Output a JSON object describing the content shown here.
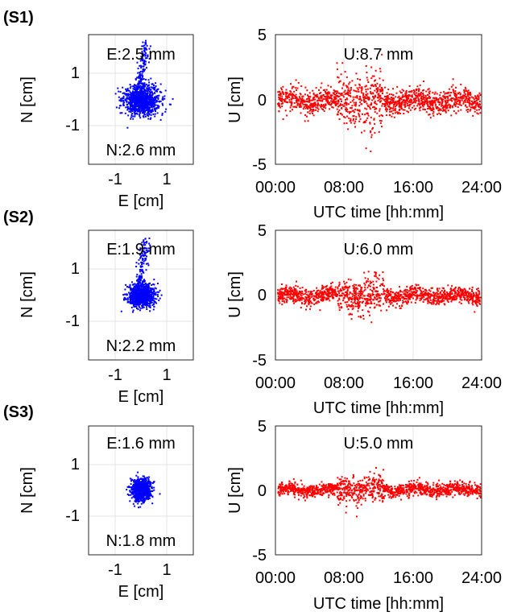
{
  "figure": {
    "rows": [
      {
        "label": "(S1)",
        "scatter_annotations": {
          "top": "E:2.5 mm",
          "bottom": "N:2.6 mm"
        },
        "scatter_xlabel": "E [cm]",
        "scatter_ylabel": "N [cm]",
        "scatter_xticks": [
          "-1",
          "1"
        ],
        "scatter_yticks": [
          "1",
          "-1"
        ],
        "time_annotation": "U:8.7 mm",
        "time_xlabel": "UTC time [hh:mm]",
        "time_ylabel": "U [cm]",
        "time_xticks": [
          "00:00",
          "08:00",
          "16:00",
          "24:00"
        ],
        "time_yticks": [
          "5",
          "0",
          "-5"
        ]
      },
      {
        "label": "(S2)",
        "scatter_annotations": {
          "top": "E:1.9 mm",
          "bottom": "N:2.2 mm"
        },
        "scatter_xlabel": "E [cm]",
        "scatter_ylabel": "N [cm]",
        "scatter_xticks": [
          "-1",
          "1"
        ],
        "scatter_yticks": [
          "1",
          "-1"
        ],
        "time_annotation": "U:6.0 mm",
        "time_xlabel": "UTC time [hh:mm]",
        "time_ylabel": "U [cm]",
        "time_xticks": [
          "00:00",
          "08:00",
          "16:00",
          "24:00"
        ],
        "time_yticks": [
          "5",
          "0",
          "-5"
        ]
      },
      {
        "label": "(S3)",
        "scatter_annotations": {
          "top": "E:1.6 mm",
          "bottom": "N:1.8 mm"
        },
        "scatter_xlabel": "E [cm]",
        "scatter_ylabel": "N [cm]",
        "scatter_xticks": [
          "-1",
          "1"
        ],
        "scatter_yticks": [
          "1",
          "-1"
        ],
        "time_annotation": "U:5.0 mm",
        "time_xlabel": "UTC time [hh:mm]",
        "time_ylabel": "U [cm]",
        "time_xticks": [
          "00:00",
          "08:00",
          "16:00",
          "24:00"
        ],
        "time_yticks": [
          "5",
          "0",
          "-5"
        ]
      }
    ],
    "colors": {
      "scatter": "#0000ff",
      "timeseries": "#ff0000",
      "grid": "#e3e3e3",
      "axis": "#262626"
    }
  },
  "chart_data": [
    {
      "type": "scatter",
      "panel": "S1 horizontal",
      "xlabel": "E [cm]",
      "ylabel": "N [cm]",
      "xlim": [
        -2,
        2
      ],
      "ylim": [
        -2,
        2
      ],
      "grid": true,
      "annotations": [
        "E:2.5 mm",
        "N:2.6 mm"
      ],
      "center": [
        0,
        0
      ],
      "std_mm": [
        2.5,
        2.6
      ]
    },
    {
      "type": "scatter",
      "panel": "S1 up",
      "xlabel": "UTC time [hh:mm]",
      "ylabel": "U [cm]",
      "xlim": [
        "00:00",
        "24:00"
      ],
      "ylim": [
        -5,
        5
      ],
      "grid": true,
      "annotations": [
        "U:8.7 mm"
      ],
      "std_mm": 8.7
    },
    {
      "type": "scatter",
      "panel": "S2 horizontal",
      "xlabel": "E [cm]",
      "ylabel": "N [cm]",
      "xlim": [
        -2,
        2
      ],
      "ylim": [
        -2,
        2
      ],
      "grid": true,
      "annotations": [
        "E:1.9 mm",
        "N:2.2 mm"
      ],
      "center": [
        0,
        0
      ],
      "std_mm": [
        1.9,
        2.2
      ]
    },
    {
      "type": "scatter",
      "panel": "S2 up",
      "xlabel": "UTC time [hh:mm]",
      "ylabel": "U [cm]",
      "xlim": [
        "00:00",
        "24:00"
      ],
      "ylim": [
        -5,
        5
      ],
      "grid": true,
      "annotations": [
        "U:6.0 mm"
      ],
      "std_mm": 6.0
    },
    {
      "type": "scatter",
      "panel": "S3 horizontal",
      "xlabel": "E [cm]",
      "ylabel": "N [cm]",
      "xlim": [
        -2,
        2
      ],
      "ylim": [
        -2,
        2
      ],
      "grid": true,
      "annotations": [
        "E:1.6 mm",
        "N:1.8 mm"
      ],
      "center": [
        0,
        0
      ],
      "std_mm": [
        1.6,
        1.8
      ]
    },
    {
      "type": "scatter",
      "panel": "S3 up",
      "xlabel": "UTC time [hh:mm]",
      "ylabel": "U [cm]",
      "xlim": [
        "00:00",
        "24:00"
      ],
      "ylim": [
        -5,
        5
      ],
      "grid": true,
      "annotations": [
        "U:5.0 mm"
      ],
      "std_mm": 5.0
    }
  ]
}
